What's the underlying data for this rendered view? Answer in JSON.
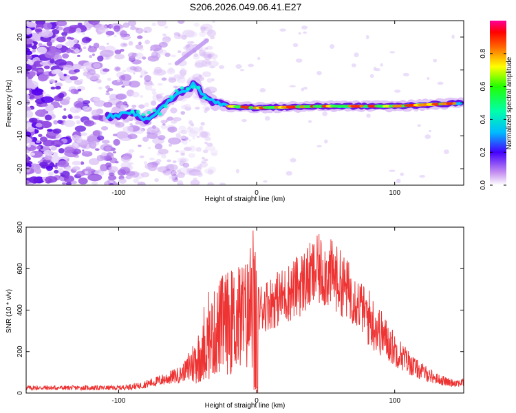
{
  "title": "S206.2026.049.06.41.E27",
  "chart_data": [
    {
      "type": "heatmap",
      "name": "spectrogram",
      "xlabel": "Height of straight line (km)",
      "ylabel": "Frequency (Hz)",
      "xlim": [
        -167,
        150
      ],
      "ylim": [
        -25,
        25
      ],
      "xticks": [
        -100,
        0,
        100
      ],
      "yticks": [
        20,
        10,
        0,
        -10,
        -20
      ],
      "colorbar": {
        "label": "Normalized spectral amplitude",
        "range": [
          0,
          1
        ],
        "ticks": [
          0.0,
          0.2,
          0.4,
          0.6,
          0.8
        ],
        "tick_labels": [
          "0.0",
          "0.2",
          "0.4",
          "0.6",
          "0.8"
        ]
      },
      "ridge": {
        "description_points_km_hz": [
          [
            -105,
            -4
          ],
          [
            -90,
            -3
          ],
          [
            -80,
            -5
          ],
          [
            -70,
            -2
          ],
          [
            -60,
            2
          ],
          [
            -50,
            4
          ],
          [
            -45,
            6
          ],
          [
            -40,
            3
          ],
          [
            -30,
            0
          ],
          [
            -20,
            -1
          ],
          [
            0,
            -1.5
          ],
          [
            50,
            -1
          ],
          [
            100,
            -1
          ],
          [
            150,
            0
          ]
        ]
      },
      "noise_region_km": [
        -167,
        -60
      ]
    },
    {
      "type": "line",
      "name": "snr",
      "xlabel": "Height of straight line (km)",
      "ylabel": "SNR (10 * v/v)",
      "xlim": [
        -167,
        150
      ],
      "ylim": [
        0,
        800
      ],
      "xticks": [
        -100,
        0,
        100
      ],
      "yticks": [
        0,
        200,
        400,
        600,
        800
      ],
      "line_color": "#ee3333",
      "envelope_km_snr": [
        [
          -167,
          25
        ],
        [
          -100,
          25
        ],
        [
          -85,
          35
        ],
        [
          -70,
          60
        ],
        [
          -55,
          90
        ],
        [
          -45,
          150
        ],
        [
          -35,
          250
        ],
        [
          -25,
          330
        ],
        [
          -15,
          350
        ],
        [
          -5,
          380
        ],
        [
          5,
          420
        ],
        [
          20,
          470
        ],
        [
          35,
          540
        ],
        [
          45,
          590
        ],
        [
          55,
          570
        ],
        [
          70,
          470
        ],
        [
          85,
          330
        ],
        [
          100,
          210
        ],
        [
          115,
          120
        ],
        [
          130,
          70
        ],
        [
          140,
          50
        ],
        [
          150,
          50
        ]
      ]
    }
  ]
}
